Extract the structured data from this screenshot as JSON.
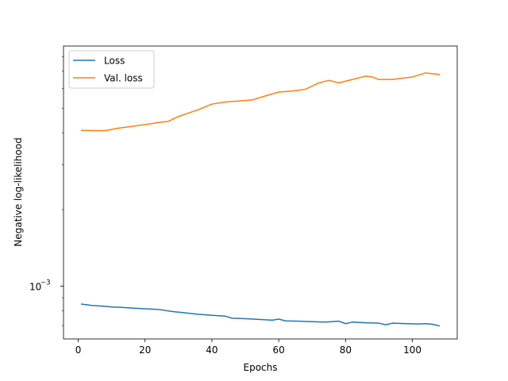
{
  "chart_data": {
    "type": "line",
    "title": "",
    "xlabel": "Epochs",
    "ylabel": "Negative log-likelihood",
    "yscale": "log",
    "xlim": [
      -4.4,
      113.4
    ],
    "ylim": [
      0.00062,
      0.0088
    ],
    "xticks": [
      0,
      20,
      40,
      60,
      80,
      100
    ],
    "xtick_labels": [
      "0",
      "20",
      "40",
      "60",
      "80",
      "100"
    ],
    "yticks": [
      0.001
    ],
    "ytick_labels": [
      "10",
      "−3"
    ],
    "grid": false,
    "legend_position": "upper-left",
    "series": [
      {
        "name": "Loss",
        "color": "#1f77b4",
        "x": [
          1,
          4,
          8,
          10,
          13,
          16,
          20,
          24,
          28,
          32,
          36,
          40,
          44,
          46,
          50,
          54,
          58,
          60,
          62,
          66,
          70,
          74,
          78,
          80,
          82,
          86,
          90,
          92,
          94,
          98,
          102,
          104,
          106,
          108
        ],
        "y": [
          0.00085,
          0.00084,
          0.000833,
          0.000828,
          0.000825,
          0.00082,
          0.000815,
          0.00081,
          0.000795,
          0.000785,
          0.000775,
          0.000768,
          0.000762,
          0.000748,
          0.000745,
          0.00074,
          0.000735,
          0.000742,
          0.00073,
          0.000728,
          0.000725,
          0.000722,
          0.000728,
          0.000712,
          0.000722,
          0.000718,
          0.000715,
          0.000705,
          0.000715,
          0.000712,
          0.00071,
          0.000712,
          0.000708,
          0.000698
        ]
      },
      {
        "name": "Val. loss",
        "color": "#ff7f0e",
        "x": [
          1,
          5,
          8,
          12,
          16,
          20,
          24,
          27,
          30,
          36,
          40,
          44,
          48,
          52,
          56,
          60,
          64,
          68,
          72,
          75,
          78,
          82,
          86,
          88,
          90,
          94,
          98,
          100,
          104,
          108
        ],
        "y": [
          0.0041,
          0.00409,
          0.00409,
          0.00418,
          0.00425,
          0.00432,
          0.0044,
          0.00445,
          0.00465,
          0.00495,
          0.0052,
          0.0053,
          0.00535,
          0.0054,
          0.0056,
          0.0058,
          0.00585,
          0.00595,
          0.0063,
          0.00645,
          0.0063,
          0.0065,
          0.0067,
          0.00665,
          0.0065,
          0.0065,
          0.0066,
          0.00665,
          0.0069,
          0.0068
        ]
      }
    ]
  }
}
